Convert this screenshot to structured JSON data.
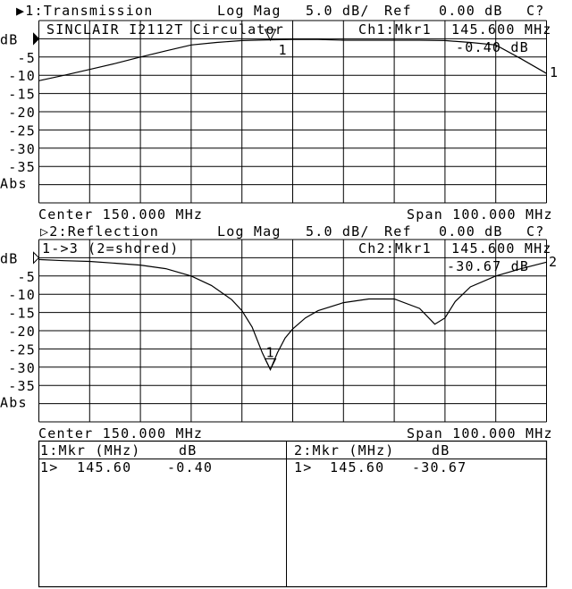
{
  "channel1": {
    "title": "▶1:Transmission",
    "format": "Log Mag",
    "scale": "5.0 dB/",
    "ref_label": "Ref",
    "ref_value": "0.00 dB",
    "cal_status": "C?",
    "title_annotation": "SINCLAIR I2112T Circulator",
    "marker_label": "Ch1:Mkr1",
    "marker_freq": "145.600 MHz",
    "marker_value": "-0.40 dB",
    "marker_number": "1",
    "trace_label": "1",
    "center": "Center 150.000 MHz",
    "span": "Span 100.000 MHz",
    "y_labels": [
      "dB",
      "-5",
      "-10",
      "-15",
      "-20",
      "-25",
      "-30",
      "-35",
      "Abs"
    ]
  },
  "channel2": {
    "title": "▷2:Reflection",
    "format": "Log Mag",
    "scale": "5.0 dB/",
    "ref_label": "Ref",
    "ref_value": "0.00 dB",
    "cal_status": "C?",
    "title_annotation": "1->3 (2=shored)",
    "marker_label": "Ch2:Mkr1",
    "marker_freq": "145.600 MHz",
    "marker_value": "-30.67 dB",
    "marker_number": "1",
    "trace_label": "2",
    "center": "Center 150.000 MHz",
    "span": "Span 100.000 MHz",
    "y_labels": [
      "dB",
      "-5",
      "-10",
      "-15",
      "-20",
      "-25",
      "-30",
      "-35",
      "Abs"
    ]
  },
  "marker_table": [
    {
      "header_mkr": "1:Mkr (MHz)",
      "header_unit": "dB",
      "row_index": "1>",
      "freq": "145.60",
      "value": "-0.40"
    },
    {
      "header_mkr": "2:Mkr (MHz)",
      "header_unit": "dB",
      "row_index": "1>",
      "freq": "145.60",
      "value": "-30.67"
    }
  ],
  "chart_data": [
    {
      "type": "line",
      "title": "1:Transmission",
      "xlim": [
        100,
        200
      ],
      "ylim": [
        -45,
        5
      ],
      "ref_db": 0,
      "db_per_div": 5,
      "grid": true,
      "marker": {
        "freq": 145.6,
        "value": -0.4
      },
      "x": [
        100,
        105,
        110,
        115,
        120,
        125,
        130,
        135,
        140,
        145,
        150,
        155,
        160,
        165,
        170,
        175,
        180,
        185,
        190,
        195,
        200
      ],
      "y": [
        -11.5,
        -10.0,
        -8.4,
        -6.8,
        -5.0,
        -3.3,
        -1.7,
        -1.0,
        -0.5,
        -0.3,
        -0.2,
        -0.2,
        -0.4,
        -0.4,
        -0.4,
        -0.4,
        -0.5,
        -1.0,
        -1.7,
        -5.5,
        -9.5
      ]
    },
    {
      "type": "line",
      "title": "2:Reflection",
      "xlim": [
        100,
        200
      ],
      "ylim": [
        -45,
        5
      ],
      "ref_db": 0,
      "db_per_div": 5,
      "grid": true,
      "marker": {
        "freq": 145.6,
        "value": -30.67
      },
      "x": [
        100,
        105,
        110,
        115,
        120,
        125,
        130,
        134,
        138,
        140,
        142,
        144,
        145.6,
        147,
        148.5,
        150,
        152.5,
        155,
        160,
        165,
        170,
        175,
        178,
        180,
        182,
        185,
        190,
        195,
        200
      ],
      "y": [
        -0.5,
        -0.8,
        -1.0,
        -1.5,
        -2.0,
        -3.0,
        -5.0,
        -7.6,
        -11.5,
        -14.5,
        -19,
        -26,
        -30.67,
        -26,
        -22,
        -19.5,
        -16.5,
        -14.5,
        -12.3,
        -11.3,
        -11.3,
        -13.9,
        -18.2,
        -16.5,
        -12,
        -8,
        -5,
        -3,
        -1.2
      ]
    }
  ]
}
